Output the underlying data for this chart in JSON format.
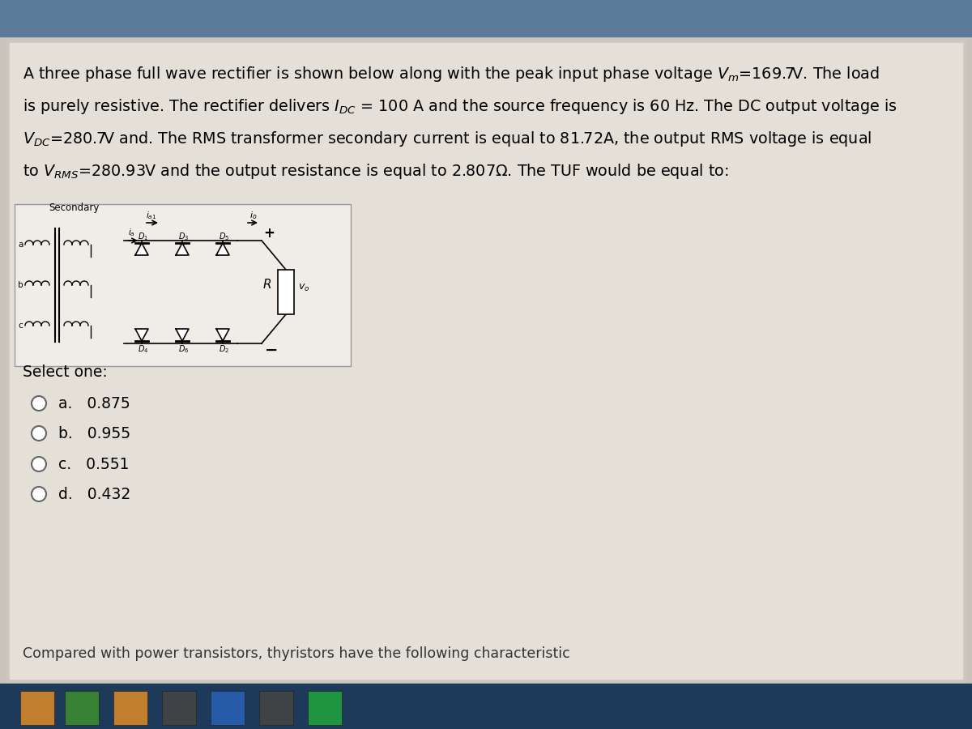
{
  "background_main": "#c8c4bc",
  "background_content": "#e8e4de",
  "select_text": "Select one:",
  "options": [
    {
      "label": "a.",
      "value": "0.875"
    },
    {
      "label": "b.",
      "value": "0.955"
    },
    {
      "label": "c.",
      "value": "0.551"
    },
    {
      "label": "d.",
      "value": "0.432"
    }
  ],
  "footer_text": "Compared with power transistors, thyristors have the following characteristic",
  "circuit_label": "Secondary",
  "taskbar_color": "#1e3a5a",
  "top_bar_color": "#5a7a9a"
}
